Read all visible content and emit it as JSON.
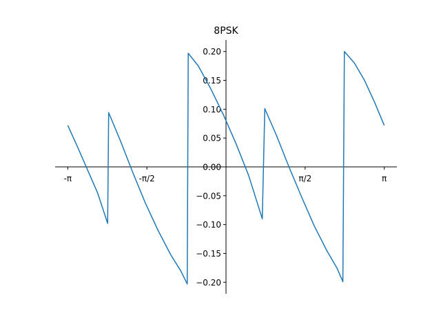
{
  "chart_data": {
    "type": "line",
    "title": "8PSK",
    "xlabel": "",
    "ylabel": "",
    "xlim": [
      -3.3929,
      3.3929
    ],
    "ylim": [
      -0.22,
      0.22
    ],
    "grid": false,
    "spines": "centered",
    "x_ticks": [
      {
        "value": -3.14159,
        "label": "-π"
      },
      {
        "value": -1.5708,
        "label": "-π/2"
      },
      {
        "value": 1.5708,
        "label": "π/2"
      },
      {
        "value": 3.14159,
        "label": "π"
      }
    ],
    "y_ticks": [
      {
        "value": 0.2,
        "label": "0.20"
      },
      {
        "value": 0.15,
        "label": "0.15"
      },
      {
        "value": 0.1,
        "label": "0.10"
      },
      {
        "value": 0.05,
        "label": "0.05"
      },
      {
        "value": 0.0,
        "label": "0.00"
      },
      {
        "value": -0.05,
        "label": "−0.05"
      },
      {
        "value": -0.1,
        "label": "−0.10"
      },
      {
        "value": -0.15,
        "label": "−0.15"
      },
      {
        "value": -0.2,
        "label": "−0.20"
      }
    ],
    "series": [
      {
        "color": "#1f77b4",
        "points": [
          [
            -3.1416,
            0.072
          ],
          [
            -2.95,
            0.035
          ],
          [
            -2.75,
            -0.005
          ],
          [
            -2.55,
            -0.045
          ],
          [
            -2.35,
            -0.098
          ],
          [
            -2.35,
            -0.098
          ],
          [
            -2.33,
            0.094
          ],
          [
            -2.33,
            0.094
          ],
          [
            -2.1,
            0.046
          ],
          [
            -1.85,
            -0.01
          ],
          [
            -1.6,
            -0.063
          ],
          [
            -1.35,
            -0.11
          ],
          [
            -1.1,
            -0.152
          ],
          [
            -0.9,
            -0.18
          ],
          [
            -0.77,
            -0.203
          ],
          [
            -0.77,
            -0.203
          ],
          [
            -0.75,
            0.197
          ],
          [
            -0.75,
            0.197
          ],
          [
            -0.55,
            0.175
          ],
          [
            -0.3,
            0.135
          ],
          [
            -0.05,
            0.09
          ],
          [
            0.2,
            0.04
          ],
          [
            0.45,
            -0.015
          ],
          [
            0.72,
            -0.09
          ],
          [
            0.72,
            -0.09
          ],
          [
            0.77,
            0.101
          ],
          [
            0.77,
            0.101
          ],
          [
            1.0,
            0.055
          ],
          [
            1.25,
            0.0
          ],
          [
            1.5,
            -0.052
          ],
          [
            1.75,
            -0.102
          ],
          [
            2.0,
            -0.145
          ],
          [
            2.2,
            -0.175
          ],
          [
            2.32,
            -0.199
          ],
          [
            2.32,
            -0.199
          ],
          [
            2.35,
            0.2
          ],
          [
            2.35,
            0.2
          ],
          [
            2.55,
            0.18
          ],
          [
            2.75,
            0.15
          ],
          [
            2.95,
            0.112
          ],
          [
            3.1416,
            0.072
          ]
        ]
      }
    ]
  }
}
